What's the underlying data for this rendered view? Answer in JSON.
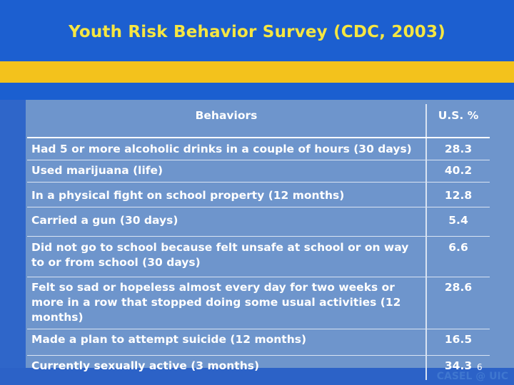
{
  "slide": {
    "title": "Youth Risk Behavior Survey (CDC, 2003)",
    "page_number": "6",
    "footer": "CASEL @ UIC"
  },
  "table": {
    "headers": [
      "Behaviors",
      "U.S. %"
    ],
    "rows": [
      {
        "behavior": "Had 5 or more alcoholic drinks in a couple of hours (30 days)",
        "pct": "28.3"
      },
      {
        "behavior": "Used marijuana (life)",
        "pct": "40.2"
      },
      {
        "behavior": "In a physical fight on school property (12 months)",
        "pct": "12.8"
      },
      {
        "behavior": "Carried a gun (30 days)",
        "pct": "5.4"
      },
      {
        "behavior": "Did not go to school because felt unsafe at school or on way to or from school (30 days)",
        "pct": "6.6"
      },
      {
        "behavior": "Felt so sad or hopeless almost every day for two weeks or more in a row that stopped doing some usual activities (12 months)",
        "pct": "28.6"
      },
      {
        "behavior": "Made a plan to attempt suicide (12 months)",
        "pct": "16.5"
      },
      {
        "behavior": "Currently sexually active (3 months)",
        "pct": "34.3"
      }
    ]
  }
}
